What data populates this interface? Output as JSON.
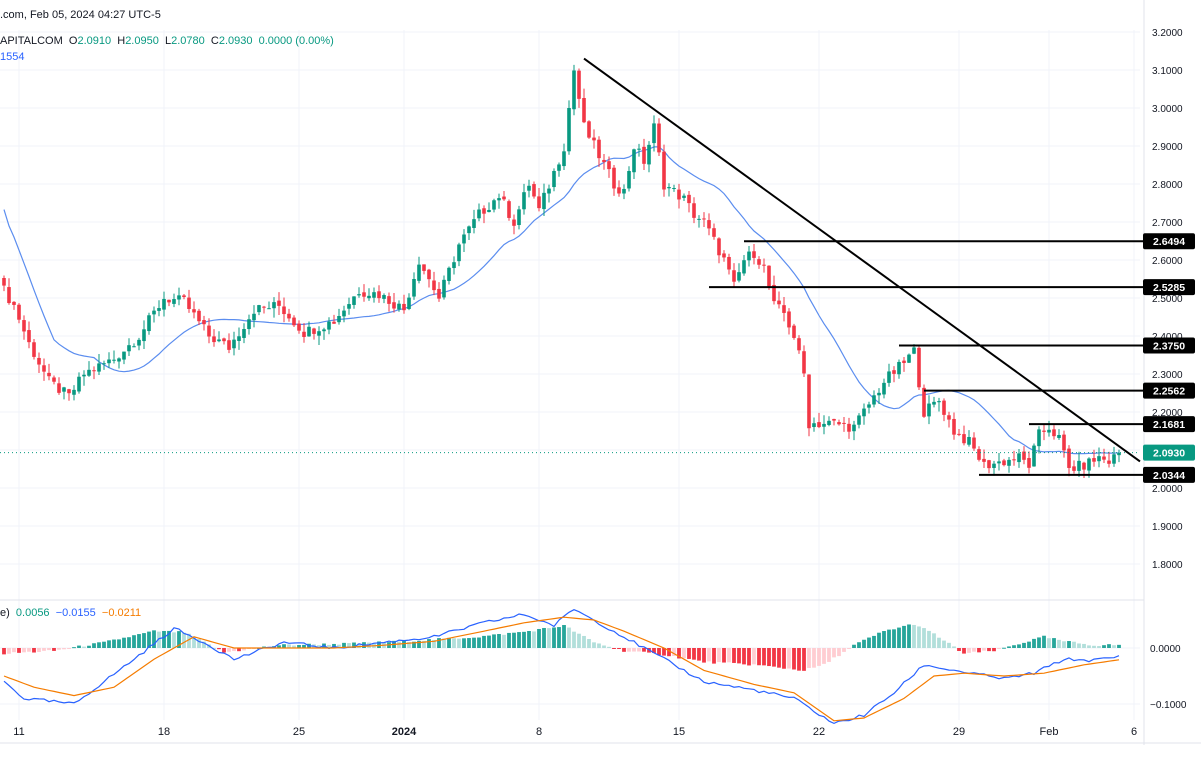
{
  "header": {
    "top_line": ".com, Feb 05, 2024 04:27 UTC-5",
    "symbol": "APITALCOM",
    "open_label": "O",
    "open": "2.0910",
    "high_label": "H",
    "high": "2.0950",
    "low_label": "L",
    "low": "2.0780",
    "close_label": "C",
    "close": "2.0930",
    "change": "0.0000 (0.00%)",
    "ma_value": "1554"
  },
  "macd_header": {
    "prefix": "e)",
    "histogram": "0.0056",
    "macd": "−0.0155",
    "signal": "−0.0211"
  },
  "colors": {
    "up": "#089981",
    "down": "#f23645",
    "ma": "#5b8def",
    "macd_line": "#2962ff",
    "signal_line": "#f57c00",
    "hist_up": "#26a69a",
    "hist_up_light": "#b2dfdb",
    "hist_down": "#f23645",
    "hist_down_light": "#ffcdd2",
    "price_tag": "#089981",
    "level_tag": "#000000"
  },
  "chart_data": [
    {
      "type": "candlestick",
      "title": "",
      "y_ticks": [
        "3.2000",
        "3.1000",
        "3.0000",
        "2.9000",
        "2.8000",
        "2.7000",
        "2.6000",
        "2.5000",
        "2.4000",
        "2.3000",
        "2.2000",
        "2.1000",
        "2.0000",
        "1.9000",
        "1.8000"
      ],
      "ylim": [
        1.75,
        3.2
      ],
      "x_tick_labels": [
        "11",
        "18",
        "25",
        "2024",
        "8",
        "15",
        "22",
        "29",
        "Feb",
        "6"
      ],
      "current_price": "2.0930",
      "horizontal_levels": [
        {
          "value": 2.6494,
          "label": "2.6494"
        },
        {
          "value": 2.5285,
          "label": "2.5285"
        },
        {
          "value": 2.375,
          "label": "2.3750"
        },
        {
          "value": 2.2562,
          "label": "2.2562"
        },
        {
          "value": 2.1681,
          "label": "2.1681"
        },
        {
          "value": 2.0344,
          "label": "2.0344"
        }
      ],
      "trendline": {
        "from_price": 3.13,
        "to_price": 2.07
      },
      "anchors_close": [
        [
          0,
          2.52
        ],
        [
          2,
          2.48
        ],
        [
          5,
          2.38
        ],
        [
          9,
          2.28
        ],
        [
          13,
          2.24
        ],
        [
          16,
          2.3
        ],
        [
          22,
          2.34
        ],
        [
          27,
          2.4
        ],
        [
          32,
          2.5
        ],
        [
          36,
          2.49
        ],
        [
          41,
          2.4
        ],
        [
          45,
          2.37
        ],
        [
          50,
          2.47
        ],
        [
          55,
          2.48
        ],
        [
          60,
          2.41
        ],
        [
          66,
          2.44
        ],
        [
          71,
          2.52
        ],
        [
          75,
          2.51
        ],
        [
          80,
          2.47
        ],
        [
          83,
          2.6
        ],
        [
          87,
          2.5
        ],
        [
          91,
          2.64
        ],
        [
          95,
          2.72
        ],
        [
          99,
          2.77
        ],
        [
          102,
          2.7
        ],
        [
          105,
          2.8
        ],
        [
          107,
          2.73
        ],
        [
          110,
          2.83
        ],
        [
          112,
          2.9
        ],
        [
          114,
          3.1
        ],
        [
          116,
          2.95
        ],
        [
          118,
          2.9
        ],
        [
          120,
          2.85
        ],
        [
          122,
          2.8
        ],
        [
          124,
          2.78
        ],
        [
          126,
          2.9
        ],
        [
          128,
          2.86
        ],
        [
          130,
          2.95
        ],
        [
          132,
          2.8
        ],
        [
          134,
          2.78
        ],
        [
          136,
          2.76
        ],
        [
          138,
          2.72
        ],
        [
          140,
          2.7
        ],
        [
          142,
          2.65
        ],
        [
          144,
          2.6
        ],
        [
          146,
          2.53
        ],
        [
          148,
          2.6
        ],
        [
          150,
          2.62
        ],
        [
          152,
          2.58
        ],
        [
          154,
          2.48
        ],
        [
          156,
          2.46
        ],
        [
          158,
          2.4
        ],
        [
          160,
          2.3
        ],
        [
          161,
          2.17
        ],
        [
          166,
          2.17
        ],
        [
          170,
          2.16
        ],
        [
          173,
          2.22
        ],
        [
          176,
          2.28
        ],
        [
          180,
          2.33
        ],
        [
          182,
          2.36
        ],
        [
          184,
          2.2
        ],
        [
          187,
          2.23
        ],
        [
          190,
          2.15
        ],
        [
          193,
          2.12
        ],
        [
          196,
          2.06
        ],
        [
          200,
          2.07
        ],
        [
          203,
          2.08
        ],
        [
          205,
          2.06
        ],
        [
          207,
          2.14
        ],
        [
          209,
          2.16
        ],
        [
          211,
          2.13
        ],
        [
          213,
          2.05
        ],
        [
          216,
          2.06
        ],
        [
          219,
          2.08
        ],
        [
          221,
          2.07
        ],
        [
          223,
          2.093
        ]
      ]
    },
    {
      "type": "line",
      "title": "",
      "y_ticks": [
        "0.0000",
        "−0.1000"
      ],
      "ylim": [
        -0.14,
        0.07
      ],
      "series": [
        {
          "name": "histogram",
          "anchors": [
            [
              0,
              -0.01
            ],
            [
              10,
              -0.005
            ],
            [
              20,
              0.01
            ],
            [
              30,
              0.03
            ],
            [
              36,
              0.028
            ],
            [
              44,
              -0.008
            ],
            [
              55,
              0.005
            ],
            [
              70,
              0.008
            ],
            [
              80,
              0.012
            ],
            [
              95,
              0.02
            ],
            [
              105,
              0.03
            ],
            [
              112,
              0.04
            ],
            [
              118,
              0.01
            ],
            [
              124,
              -0.005
            ],
            [
              132,
              -0.012
            ],
            [
              140,
              -0.025
            ],
            [
              150,
              -0.03
            ],
            [
              160,
              -0.04
            ],
            [
              164,
              -0.03
            ],
            [
              170,
              0.005
            ],
            [
              176,
              0.03
            ],
            [
              182,
              0.043
            ],
            [
              186,
              0.025
            ],
            [
              192,
              -0.01
            ],
            [
              198,
              -0.005
            ],
            [
              204,
              0.01
            ],
            [
              208,
              0.02
            ],
            [
              212,
              0.012
            ],
            [
              218,
              0.005
            ],
            [
              223,
              0.0056
            ]
          ]
        },
        {
          "name": "macd",
          "anchors": [
            [
              0,
              -0.06
            ],
            [
              4,
              -0.09
            ],
            [
              9,
              -0.095
            ],
            [
              14,
              -0.1
            ],
            [
              20,
              -0.06
            ],
            [
              26,
              -0.02
            ],
            [
              34,
              0.035
            ],
            [
              40,
              0.01
            ],
            [
              46,
              -0.02
            ],
            [
              56,
              0.01
            ],
            [
              66,
              0.0
            ],
            [
              76,
              0.01
            ],
            [
              86,
              0.02
            ],
            [
              96,
              0.045
            ],
            [
              104,
              0.06
            ],
            [
              110,
              0.04
            ],
            [
              114,
              0.07
            ],
            [
              118,
              0.05
            ],
            [
              124,
              0.02
            ],
            [
              132,
              -0.02
            ],
            [
              140,
              -0.06
            ],
            [
              150,
              -0.075
            ],
            [
              158,
              -0.09
            ],
            [
              166,
              -0.135
            ],
            [
              172,
              -0.12
            ],
            [
              178,
              -0.08
            ],
            [
              184,
              -0.03
            ],
            [
              190,
              -0.04
            ],
            [
              200,
              -0.055
            ],
            [
              206,
              -0.045
            ],
            [
              212,
              -0.02
            ],
            [
              218,
              -0.022
            ],
            [
              223,
              -0.0155
            ]
          ]
        },
        {
          "name": "signal",
          "anchors": [
            [
              0,
              -0.05
            ],
            [
              6,
              -0.07
            ],
            [
              14,
              -0.085
            ],
            [
              22,
              -0.07
            ],
            [
              30,
              -0.02
            ],
            [
              38,
              0.02
            ],
            [
              46,
              0.0
            ],
            [
              56,
              0.0
            ],
            [
              66,
              0.0
            ],
            [
              76,
              0.005
            ],
            [
              86,
              0.012
            ],
            [
              96,
              0.03
            ],
            [
              104,
              0.045
            ],
            [
              112,
              0.055
            ],
            [
              118,
              0.05
            ],
            [
              124,
              0.03
            ],
            [
              132,
              0.0
            ],
            [
              140,
              -0.04
            ],
            [
              150,
              -0.065
            ],
            [
              158,
              -0.08
            ],
            [
              166,
              -0.13
            ],
            [
              172,
              -0.125
            ],
            [
              180,
              -0.09
            ],
            [
              186,
              -0.05
            ],
            [
              192,
              -0.045
            ],
            [
              200,
              -0.05
            ],
            [
              208,
              -0.045
            ],
            [
              216,
              -0.03
            ],
            [
              223,
              -0.0211
            ]
          ]
        }
      ]
    }
  ]
}
